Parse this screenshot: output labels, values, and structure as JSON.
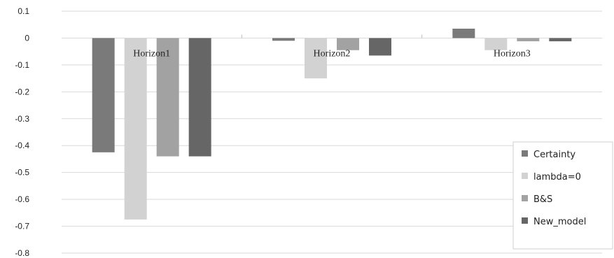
{
  "chart_data": {
    "type": "bar",
    "categories": [
      "Horizon1",
      "Horizon2",
      "Horizon3"
    ],
    "series": [
      {
        "name": "Certainty",
        "values": [
          -0.425,
          -0.01,
          0.035
        ],
        "color": "#7a7a7a"
      },
      {
        "name": "lambda=0",
        "values": [
          -0.675,
          -0.15,
          -0.045
        ],
        "color": "#d2d2d2"
      },
      {
        "name": "B&S",
        "values": [
          -0.44,
          -0.045,
          -0.012
        ],
        "color": "#a2a2a2"
      },
      {
        "name": "New_model",
        "values": [
          -0.44,
          -0.065,
          -0.012
        ],
        "color": "#666666"
      }
    ],
    "title": "",
    "xlabel": "",
    "ylabel": "",
    "ylim": [
      -0.8,
      0.1
    ],
    "yticks": [
      0.1,
      0,
      -0.1,
      -0.2,
      -0.3,
      -0.4,
      -0.5,
      -0.6,
      -0.7,
      -0.8
    ],
    "ytick_labels": [
      "0.1",
      "0",
      "-0.1",
      "-0.2",
      "-0.3",
      "-0.4",
      "-0.5",
      "-0.6",
      "-0.7",
      "-0.8"
    ],
    "grid": true,
    "legend_position": "bottom-right"
  }
}
